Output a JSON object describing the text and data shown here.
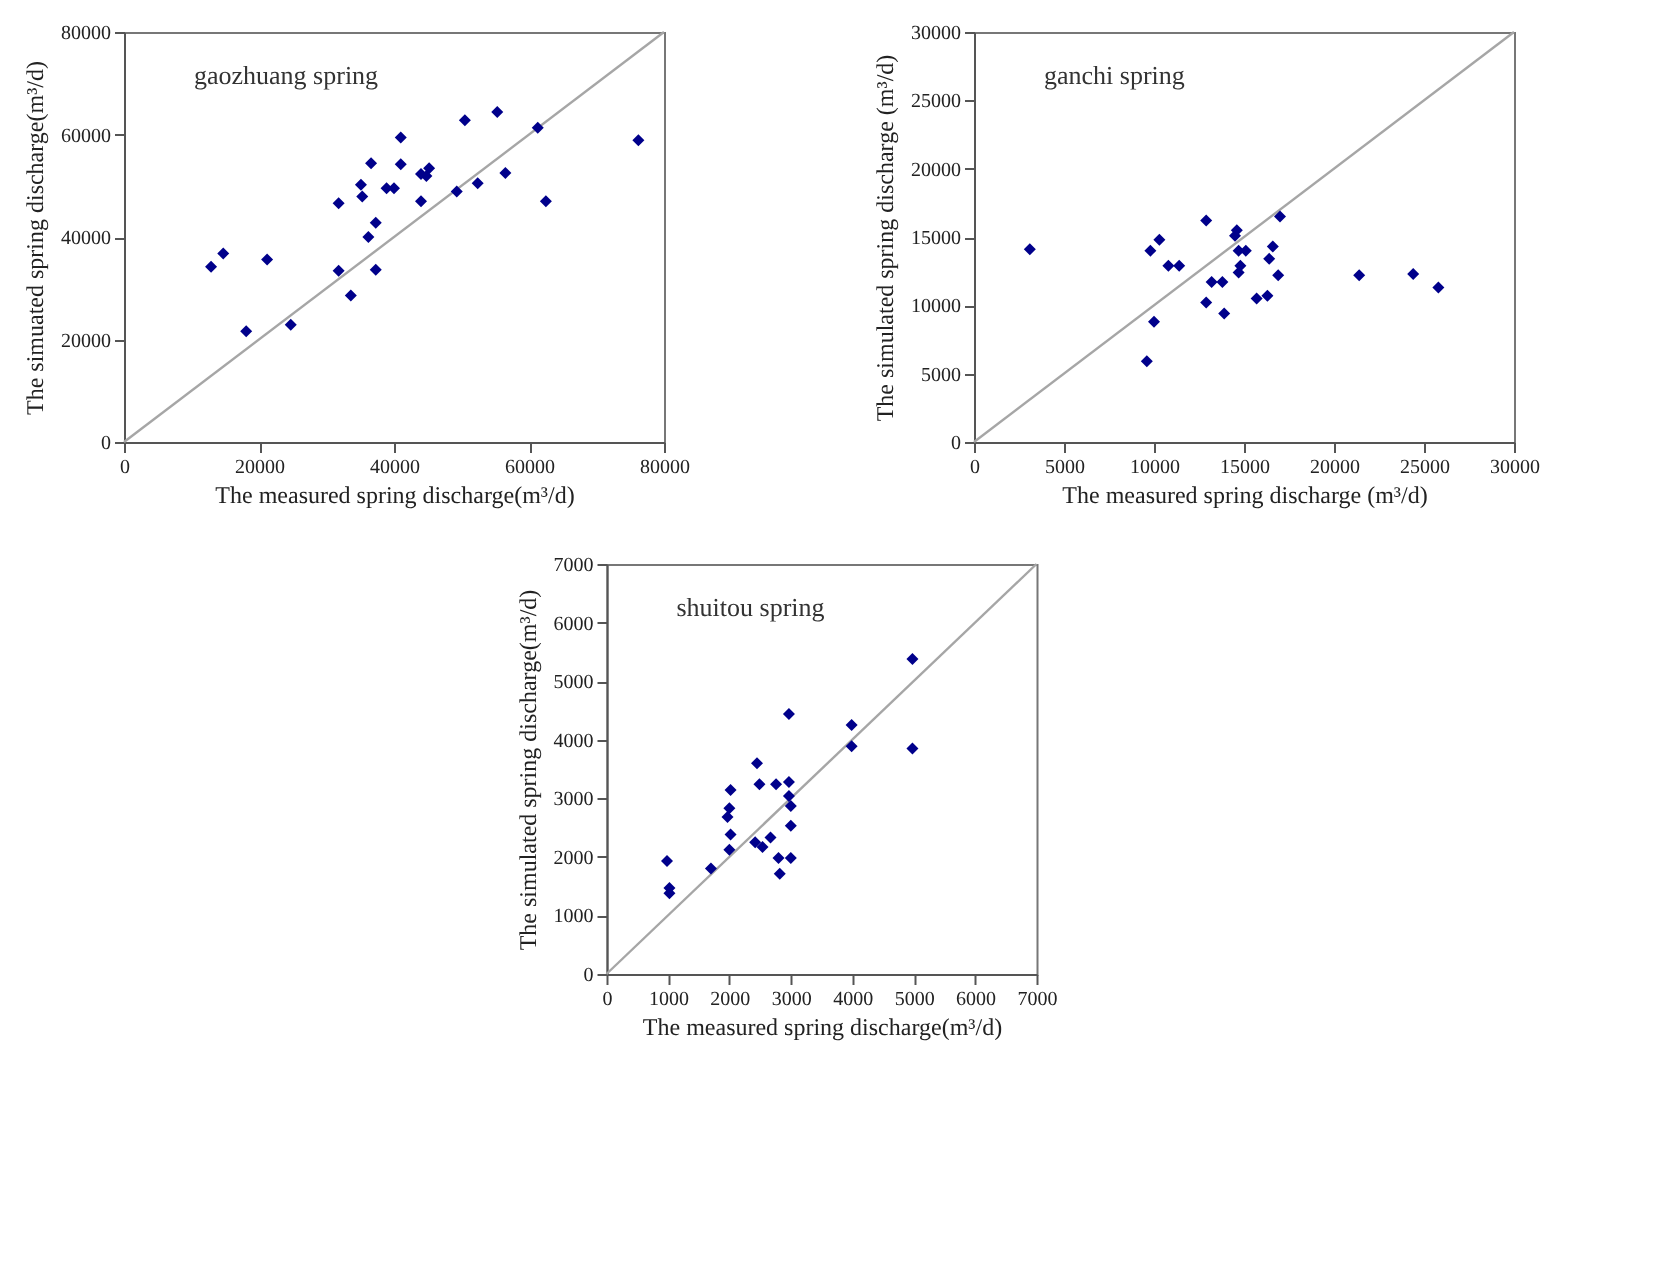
{
  "chart_data": [
    {
      "type": "scatter",
      "annotations": [
        "gaozhuang spring"
      ],
      "xlabel": "The measured spring discharge(m³/d)",
      "ylabel": "The simuated spring discharge(m³/d)",
      "xlim": [
        0,
        80000
      ],
      "ylim": [
        0,
        80000
      ],
      "xticks": [
        0,
        20000,
        40000,
        60000,
        80000
      ],
      "yticks": [
        0,
        20000,
        40000,
        60000,
        80000
      ],
      "grid": false,
      "series": [
        {
          "type": "line",
          "color": "#a6a6a6",
          "x": [
            0,
            80000
          ],
          "values": [
            0,
            80000
          ]
        },
        {
          "type": "scatter",
          "marker": "diamond",
          "color": "#00008b",
          "x": [
            12900,
            14700,
            18100,
            21200,
            24700,
            31800,
            31800,
            33600,
            35100,
            35300,
            36200,
            37300,
            36600,
            37300,
            38900,
            40000,
            41000,
            41000,
            44000,
            44000,
            44800,
            45200,
            49300,
            50500,
            52400,
            55300,
            56500,
            61300,
            62500,
            76200
          ],
          "values": [
            34200,
            36800,
            21600,
            35600,
            22900,
            46600,
            33400,
            28600,
            50200,
            47900,
            40000,
            42800,
            54400,
            33600,
            49500,
            49500,
            59400,
            54200,
            47000,
            52300,
            51900,
            53400,
            48900,
            62800,
            50500,
            64400,
            52500,
            61300,
            47000,
            58900
          ]
        }
      ]
    },
    {
      "type": "scatter",
      "annotations": [
        "ganchi spring"
      ],
      "xlabel": "The measured spring discharge (m³/d)",
      "ylabel": "The simulated spring discharge (m³/d)",
      "xlim": [
        0,
        30000
      ],
      "ylim": [
        0,
        30000
      ],
      "xticks": [
        0,
        5000,
        10000,
        15000,
        20000,
        25000,
        30000
      ],
      "yticks": [
        0,
        5000,
        10000,
        15000,
        20000,
        25000,
        30000
      ],
      "grid": false,
      "series": [
        {
          "type": "line",
          "color": "#a6a6a6",
          "x": [
            0,
            30000
          ],
          "values": [
            0,
            30000
          ]
        },
        {
          "type": "scatter",
          "marker": "diamond",
          "color": "#00008b",
          "x": [
            3100,
            9800,
            9600,
            10000,
            10300,
            10800,
            11400,
            12900,
            12900,
            13200,
            13800,
            13900,
            14500,
            14600,
            14700,
            15100,
            14800,
            14700,
            15700,
            16300,
            16400,
            16600,
            16900,
            17000,
            21400,
            24400,
            25800
          ],
          "values": [
            14100,
            14000,
            5900,
            8800,
            14800,
            12900,
            12900,
            16200,
            10200,
            11700,
            11700,
            9400,
            15100,
            15500,
            14000,
            14000,
            12900,
            12400,
            10500,
            10700,
            13400,
            14300,
            12200,
            16500,
            12200,
            12300,
            11300
          ]
        }
      ]
    },
    {
      "type": "scatter",
      "annotations": [
        "shuitou spring"
      ],
      "xlabel": "The measured spring discharge(m³/d)",
      "ylabel": "The simulated spring discharge(m³/d)",
      "xlim": [
        0,
        7000
      ],
      "ylim": [
        0,
        7000
      ],
      "xticks": [
        0,
        1000,
        2000,
        3000,
        4000,
        5000,
        6000,
        7000
      ],
      "yticks": [
        0,
        1000,
        2000,
        3000,
        4000,
        5000,
        6000,
        7000
      ],
      "grid": false,
      "series": [
        {
          "type": "line",
          "color": "#a6a6a6",
          "x": [
            0,
            7000
          ],
          "values": [
            0,
            7000
          ]
        },
        {
          "type": "scatter",
          "marker": "diamond",
          "color": "#00008b",
          "x": [
            985,
            1025,
            1025,
            1700,
            1970,
            2000,
            2020,
            2020,
            2000,
            2450,
            2490,
            2420,
            2540,
            2670,
            2760,
            2800,
            2820,
            2970,
            2970,
            2970,
            3000,
            3000,
            3000,
            3990,
            3990,
            4980,
            4980
          ],
          "values": [
            1930,
            1470,
            1380,
            1800,
            2680,
            2830,
            3140,
            2380,
            2120,
            3600,
            3240,
            2250,
            2170,
            2330,
            3240,
            1980,
            1710,
            4440,
            3280,
            3040,
            2870,
            2530,
            1980,
            4250,
            3890,
            5380,
            3850
          ]
        }
      ]
    }
  ]
}
